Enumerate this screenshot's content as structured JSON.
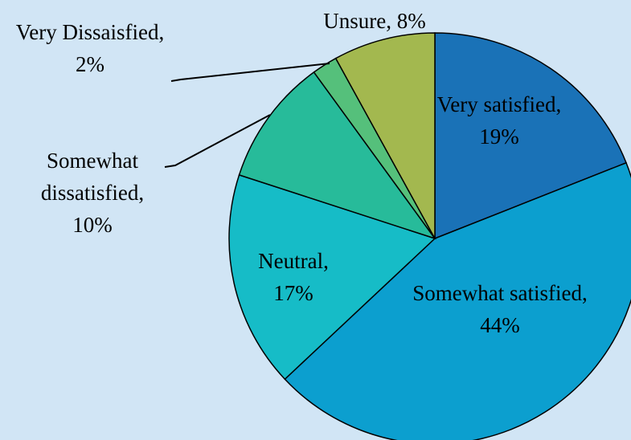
{
  "chart_data": {
    "type": "pie",
    "categories": [
      "Very satisfied,",
      "Somewhat satisfied,",
      "Neutral,",
      "Somewhat dissatisfied,",
      "Very Dissaisfied,",
      "Unsure,"
    ],
    "values": [
      19,
      44,
      17,
      10,
      2,
      8
    ],
    "value_labels": [
      "19%",
      "44%",
      "17%",
      "10%",
      "2%",
      "8%"
    ],
    "colors": [
      "#1a72b7",
      "#0c9fcf",
      "#16bcc7",
      "#27bb9a",
      "#55c07b",
      "#a3b84f"
    ]
  }
}
